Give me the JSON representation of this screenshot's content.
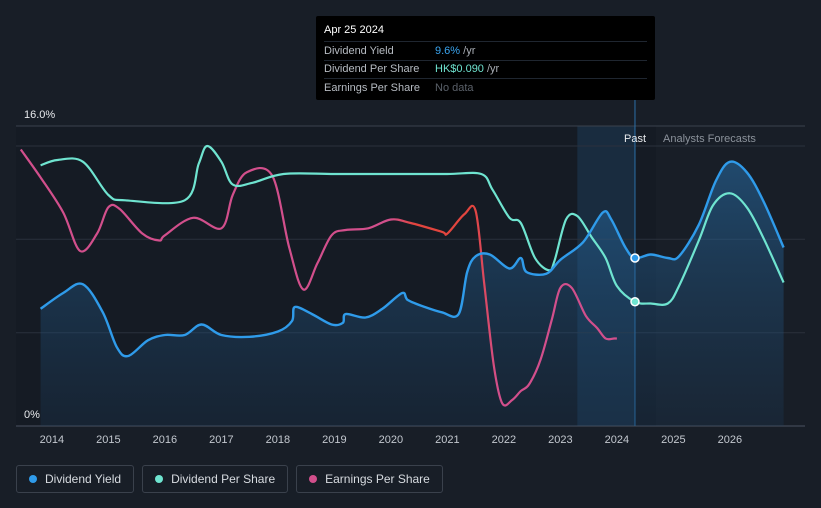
{
  "tooltip": {
    "date": "Apr 25 2024",
    "rows": [
      {
        "label": "Dividend Yield",
        "value": "9.6%",
        "suffix": " /yr"
      },
      {
        "label": "Dividend Per Share",
        "value": "HK$0.090",
        "suffix": " /yr"
      },
      {
        "label": "Earnings Per Share",
        "value": "No data"
      }
    ]
  },
  "labels": {
    "past": "Past",
    "forecast": "Analysts Forecasts"
  },
  "legend": [
    {
      "label": "Dividend Yield",
      "color": "#2f9bea"
    },
    {
      "label": "Dividend Per Share",
      "color": "#6fe4d0"
    },
    {
      "label": "Earnings Per Share",
      "color": "#d24f8c"
    }
  ],
  "chart_data": {
    "type": "line",
    "title": "",
    "xlabel": "",
    "ylabel": "",
    "x_ticks": [
      "2014",
      "2015",
      "2016",
      "2017",
      "2018",
      "2019",
      "2020",
      "2021",
      "2022",
      "2023",
      "2024",
      "2025",
      "2026"
    ],
    "y_tick_labels": [
      "16.0%",
      "0%"
    ],
    "ylim": [
      0,
      16
    ],
    "xlim": [
      2013.4,
      2026.95
    ],
    "past_end": 2024.32,
    "forecast_shade_start": 2023.3,
    "series": [
      {
        "name": "Dividend Yield",
        "color": "#2f9bea",
        "filled": true,
        "x": [
          2013.8,
          2014.2,
          2014.55,
          2014.9,
          2015.15,
          2015.35,
          2015.7,
          2016.0,
          2016.35,
          2016.65,
          2017.0,
          2017.5,
          2018.0,
          2018.25,
          2018.3,
          2018.6,
          2018.95,
          2019.15,
          2019.2,
          2019.55,
          2019.85,
          2020.2,
          2020.3,
          2020.6,
          2020.9,
          2021.2,
          2021.35,
          2021.5,
          2021.75,
          2022.1,
          2022.3,
          2022.4,
          2022.75,
          2023.0,
          2023.4,
          2023.75,
          2023.9,
          2024.15,
          2024.32,
          2024.6,
          2024.9,
          2025.1,
          2025.45,
          2025.75,
          2026.0,
          2026.3,
          2026.6,
          2026.95
        ],
        "values": [
          6.7,
          7.6,
          8.1,
          6.5,
          4.5,
          4.0,
          4.9,
          5.2,
          5.2,
          5.8,
          5.2,
          5.1,
          5.4,
          6.0,
          6.8,
          6.4,
          5.8,
          5.9,
          6.4,
          6.2,
          6.7,
          7.6,
          7.2,
          6.8,
          6.5,
          6.4,
          8.8,
          9.7,
          9.8,
          9.0,
          9.6,
          8.8,
          8.7,
          9.5,
          10.5,
          12.2,
          11.8,
          10.2,
          9.6,
          9.8,
          9.6,
          9.7,
          11.5,
          14.0,
          15.1,
          14.5,
          12.8,
          10.2
        ]
      },
      {
        "name": "Dividend Per Share",
        "color": "#6fe4d0",
        "filled": false,
        "x": [
          2013.8,
          2014.1,
          2014.55,
          2015.0,
          2015.3,
          2016.35,
          2016.6,
          2016.75,
          2017.0,
          2017.2,
          2017.55,
          2018.1,
          2019.0,
          2020.0,
          2021.0,
          2021.6,
          2021.8,
          2022.1,
          2022.3,
          2022.55,
          2022.8,
          2022.9,
          2023.1,
          2023.3,
          2023.55,
          2023.8,
          2024.0,
          2024.32,
          2024.6,
          2024.9,
          2025.1,
          2025.45,
          2025.7,
          2026.0,
          2026.3,
          2026.6,
          2026.95
        ],
        "values": [
          14.9,
          15.2,
          15.1,
          13.2,
          12.9,
          12.9,
          15.0,
          16.0,
          15.1,
          13.8,
          13.9,
          14.4,
          14.4,
          14.4,
          14.4,
          14.4,
          13.5,
          11.9,
          11.6,
          9.6,
          8.9,
          9.5,
          11.8,
          12.0,
          10.8,
          9.6,
          8.0,
          7.1,
          7.0,
          7.0,
          8.0,
          10.6,
          12.6,
          13.3,
          12.5,
          10.7,
          8.2
        ]
      },
      {
        "name": "Earnings Per Share",
        "color": "#d24f8c",
        "filled": false,
        "colorEnd": "#e2453e",
        "x": [
          2013.45,
          2013.8,
          2014.2,
          2014.5,
          2014.8,
          2015.0,
          2015.2,
          2015.6,
          2015.9,
          2016.0,
          2016.5,
          2017.0,
          2017.2,
          2017.45,
          2017.9,
          2018.2,
          2018.45,
          2018.7,
          2018.95,
          2019.2,
          2019.6,
          2020.0,
          2020.35,
          2020.9,
          2021.0,
          2021.3,
          2021.5,
          2021.65,
          2021.82,
          2021.97,
          2022.15,
          2022.3,
          2022.45,
          2022.65,
          2022.85,
          2023.0,
          2023.2,
          2023.45,
          2023.65,
          2023.8,
          2023.95,
          2024.0
        ],
        "values": [
          15.8,
          14.2,
          12.2,
          10.0,
          11.0,
          12.5,
          12.4,
          11.0,
          10.6,
          10.9,
          11.9,
          11.3,
          13.2,
          14.5,
          14.3,
          10.2,
          7.8,
          9.3,
          10.9,
          11.2,
          11.3,
          11.8,
          11.6,
          11.1,
          11.0,
          12.1,
          12.3,
          8.2,
          3.5,
          1.3,
          1.5,
          2.0,
          2.4,
          3.8,
          6.1,
          7.9,
          7.9,
          6.3,
          5.6,
          5.0,
          5.0,
          5.0
        ]
      }
    ]
  }
}
